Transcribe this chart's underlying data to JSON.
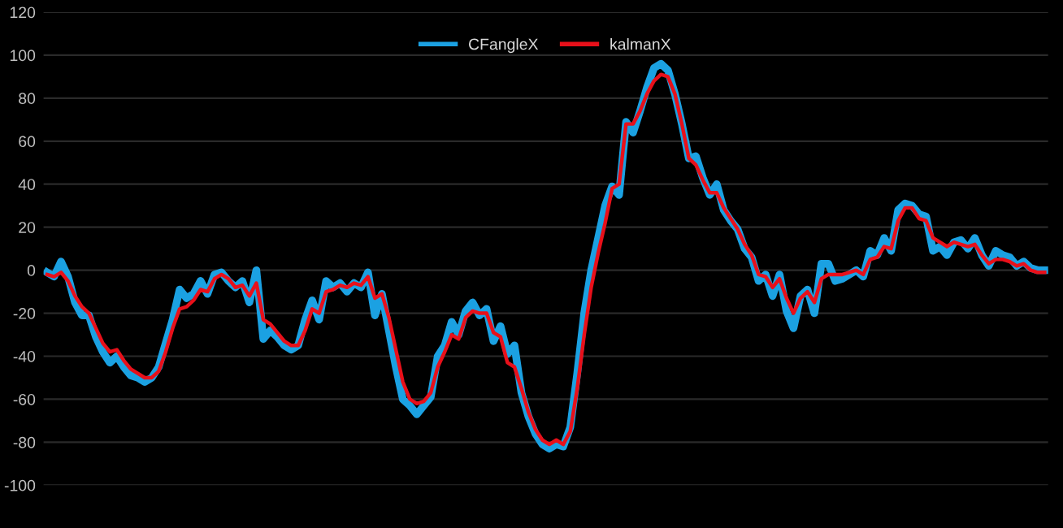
{
  "chart_data": {
    "type": "line",
    "categories": [
      null,
      null,
      null,
      null,
      null,
      null,
      null,
      null,
      null,
      null,
      null,
      null,
      null,
      null,
      null,
      null,
      null,
      null,
      null,
      null,
      null,
      null,
      null,
      null,
      null,
      null,
      null,
      null,
      null,
      null,
      null,
      null,
      null,
      null,
      null,
      null,
      null,
      null,
      null,
      null,
      null,
      null,
      null,
      null,
      null,
      null,
      null,
      null,
      null,
      null,
      null,
      null,
      null,
      null,
      null,
      null,
      null,
      null,
      null,
      null,
      null,
      null,
      null,
      null,
      null,
      null,
      null,
      null,
      null,
      null,
      null,
      null,
      null,
      null,
      null,
      null,
      null,
      null,
      null,
      null,
      null,
      null,
      null,
      null,
      null,
      null,
      null,
      null,
      null,
      null,
      null,
      null,
      null,
      null,
      null,
      null,
      null,
      null,
      null,
      null,
      null,
      null,
      null,
      null,
      null,
      null,
      null,
      null,
      null,
      null,
      null,
      null,
      null,
      null,
      null,
      null,
      null,
      null,
      null,
      null,
      null,
      null,
      null,
      null,
      null,
      null,
      null,
      null,
      null,
      null,
      null,
      null,
      null,
      null,
      null,
      null,
      null,
      null,
      null,
      null,
      null,
      null,
      null,
      null
    ],
    "series": [
      {
        "name": "CFangleX",
        "color": "#1ba1e2",
        "values": [
          -1,
          -3,
          4,
          -3,
          -15,
          -21,
          -21,
          -31,
          -38,
          -43,
          -40,
          -45,
          -49,
          -50,
          -52,
          -50,
          -45,
          -34,
          -23,
          -9,
          -13,
          -11,
          -5,
          -11,
          -2,
          -1,
          -5,
          -8,
          -5,
          -15,
          0,
          -32,
          -28,
          -31,
          -35,
          -37,
          -35,
          -23,
          -14,
          -23,
          -5,
          -8,
          -6,
          -10,
          -6,
          -8,
          -1,
          -21,
          -11,
          -28,
          -45,
          -60,
          -63,
          -67,
          -63,
          -59,
          -40,
          -35,
          -24,
          -30,
          -19,
          -15,
          -21,
          -18,
          -33,
          -26,
          -39,
          -35,
          -57,
          -68,
          -76,
          -81,
          -83,
          -81,
          -82,
          -73,
          -48,
          -20,
          0,
          15,
          30,
          39,
          35,
          69,
          64,
          74,
          85,
          94,
          96,
          93,
          82,
          68,
          52,
          53,
          43,
          35,
          40,
          28,
          23,
          19,
          10,
          6,
          -5,
          -2,
          -12,
          -2,
          -19,
          -27,
          -12,
          -9,
          -20,
          3,
          3,
          -5,
          -4,
          -2,
          0,
          -3,
          9,
          7,
          15,
          9,
          28,
          31,
          30,
          26,
          25,
          9,
          11,
          7,
          13,
          14,
          10,
          15,
          7,
          2,
          9,
          7,
          6,
          2,
          4,
          1,
          0,
          0
        ]
      },
      {
        "name": "kalmanX",
        "color": "#e8101a",
        "values": [
          -2,
          -3,
          -1,
          -5,
          -12,
          -17,
          -20,
          -27,
          -34,
          -38,
          -37,
          -42,
          -46,
          -48,
          -50,
          -50,
          -47,
          -38,
          -27,
          -18,
          -17,
          -14,
          -9,
          -10,
          -4,
          -2,
          -4,
          -8,
          -7,
          -12,
          -6,
          -23,
          -25,
          -29,
          -33,
          -35,
          -35,
          -28,
          -18,
          -20,
          -10,
          -9,
          -7,
          -8,
          -6,
          -7,
          -3,
          -13,
          -11,
          -22,
          -37,
          -52,
          -60,
          -62,
          -61,
          -57,
          -45,
          -38,
          -30,
          -32,
          -22,
          -19,
          -20,
          -20,
          -29,
          -31,
          -43,
          -45,
          -55,
          -66,
          -74,
          -79,
          -81,
          -79,
          -81,
          -75,
          -55,
          -30,
          -8,
          8,
          22,
          38,
          40,
          68,
          68,
          74,
          82,
          88,
          91,
          90,
          82,
          68,
          52,
          49,
          42,
          36,
          36,
          29,
          24,
          19,
          12,
          7,
          -2,
          -3,
          -8,
          -4,
          -13,
          -20,
          -13,
          -10,
          -15,
          -4,
          -2,
          -2,
          -2,
          -1,
          0,
          -2,
          5,
          6,
          11,
          10,
          23,
          29,
          29,
          24,
          23,
          15,
          13,
          11,
          13,
          12,
          11,
          12,
          7,
          3,
          5,
          5,
          4,
          2,
          3,
          0,
          -1,
          -1
        ]
      }
    ],
    "ylim": [
      -100,
      120
    ],
    "yticks": [
      -100,
      -80,
      -60,
      -40,
      -20,
      0,
      20,
      40,
      60,
      80,
      100,
      120
    ],
    "grid": "y",
    "legend": "top",
    "tick_labels": "y",
    "line_style": "solid",
    "marker": "none"
  }
}
